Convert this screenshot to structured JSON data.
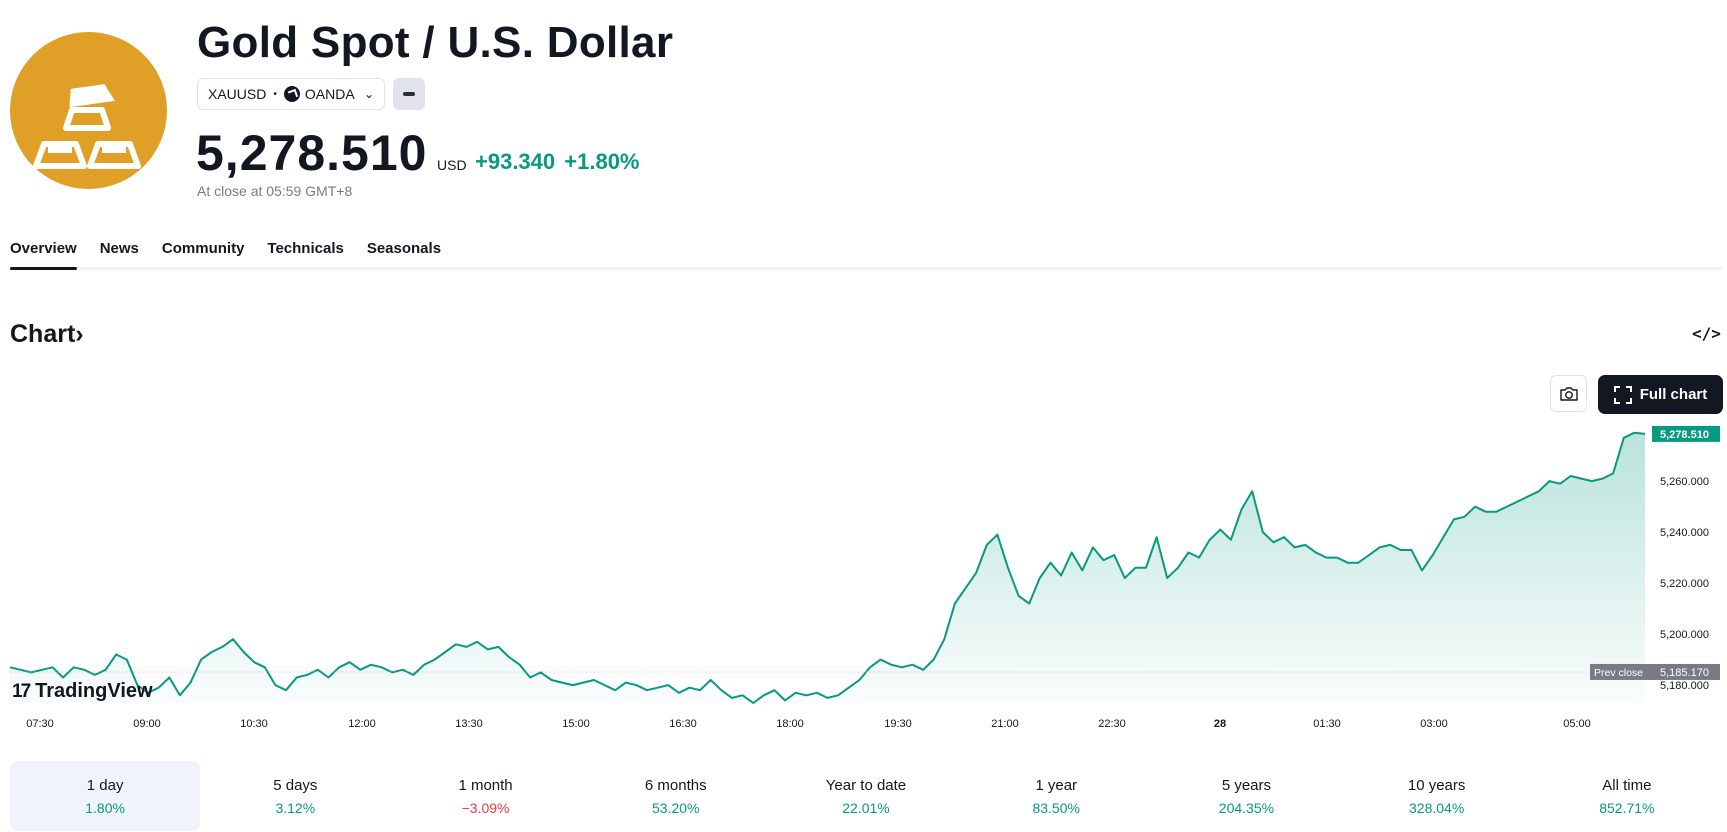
{
  "header": {
    "title": "Gold Spot / U.S. Dollar",
    "symbol": "XAUUSD",
    "separator": "•",
    "exchange": "OANDA",
    "price": "5,278.510",
    "currency": "USD",
    "change": "+93.340",
    "change_percent": "+1.80%",
    "close_note": "At close at 05:59 GMT+8",
    "logo_icon": "gold-bars-icon",
    "logo_color": "#e09f27"
  },
  "tabs": [
    {
      "label": "Overview",
      "active": true
    },
    {
      "label": "News"
    },
    {
      "label": "Community"
    },
    {
      "label": "Technicals"
    },
    {
      "label": "Seasonals"
    }
  ],
  "chart_section": {
    "heading": "Chart",
    "heading_icon": "chevron-right-icon",
    "embed_icon_label": "</>",
    "camera_icon": "camera-icon",
    "full_chart_label": "Full chart",
    "watermark": "TradingView"
  },
  "chart_data": {
    "type": "area",
    "x_ticks": [
      "07:30",
      "09:00",
      "10:30",
      "12:00",
      "13:30",
      "15:00",
      "16:30",
      "18:00",
      "19:30",
      "21:00",
      "22:30",
      "28",
      "01:30",
      "03:00",
      "05:00"
    ],
    "y_ticks": [
      "5,180.000",
      "5,200.000",
      "5,220.000",
      "5,240.000",
      "5,260.000"
    ],
    "ylim": [
      5173,
      5282
    ],
    "last_price_label": "5,278.510",
    "last_price": 5278.51,
    "prev_close_label": "Prev close",
    "prev_close_value": "5,185.170",
    "prev_close": 5185.17,
    "series": [
      {
        "values": [
          5187,
          5186,
          5185,
          5186,
          5187,
          5183,
          5187,
          5186,
          5184,
          5186,
          5192,
          5190,
          5180,
          5177,
          5179,
          5183,
          5176,
          5181,
          5190,
          5193,
          5195,
          5198,
          5193,
          5189,
          5187,
          5180,
          5178,
          5183,
          5184,
          5186,
          5183,
          5187,
          5189,
          5186,
          5188,
          5187,
          5185,
          5186,
          5184,
          5188,
          5190,
          5193,
          5196,
          5195,
          5197,
          5194,
          5195,
          5191,
          5188,
          5183,
          5185,
          5182,
          5181,
          5180,
          5181,
          5182,
          5180,
          5178,
          5181,
          5180,
          5178,
          5179,
          5180,
          5177,
          5179,
          5178,
          5182,
          5178,
          5175,
          5176,
          5173,
          5176,
          5178,
          5174,
          5177,
          5176,
          5177,
          5175,
          5176,
          5179,
          5182,
          5187,
          5190,
          5188,
          5187,
          5188,
          5186,
          5190,
          5198,
          5212,
          5218,
          5224,
          5235,
          5239,
          5226,
          5215,
          5212,
          5222,
          5228,
          5223,
          5232,
          5225,
          5234,
          5229,
          5231,
          5222,
          5226,
          5226,
          5238,
          5222,
          5226,
          5232,
          5230,
          5237,
          5241,
          5237,
          5249,
          5256,
          5240,
          5236,
          5238,
          5234,
          5235,
          5232,
          5230,
          5230,
          5228,
          5228,
          5231,
          5234,
          5235,
          5233,
          5233,
          5225,
          5231,
          5238,
          5245,
          5246,
          5250,
          5248,
          5248,
          5250,
          5252,
          5254,
          5256,
          5260,
          5259,
          5262,
          5261,
          5260,
          5261,
          5263,
          5277,
          5279,
          5278.51
        ]
      }
    ],
    "line_color": "#089981",
    "grid": false
  },
  "periods": [
    {
      "label": "1 day",
      "value": "1.80%",
      "dir": "up",
      "active": true
    },
    {
      "label": "5 days",
      "value": "3.12%",
      "dir": "up"
    },
    {
      "label": "1 month",
      "value": "−3.09%",
      "dir": "down"
    },
    {
      "label": "6 months",
      "value": "53.20%",
      "dir": "up"
    },
    {
      "label": "Year to date",
      "value": "22.01%",
      "dir": "up"
    },
    {
      "label": "1 year",
      "value": "83.50%",
      "dir": "up"
    },
    {
      "label": "5 years",
      "value": "204.35%",
      "dir": "up"
    },
    {
      "label": "10 years",
      "value": "328.04%",
      "dir": "up"
    },
    {
      "label": "All time",
      "value": "852.71%",
      "dir": "up"
    }
  ]
}
